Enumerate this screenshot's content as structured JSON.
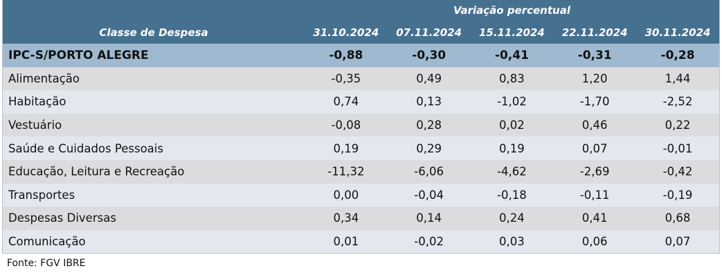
{
  "header": {
    "group_label": "Variação percentual",
    "class_label": "Classe de Despesa",
    "dates": [
      "31.10.2024",
      "07.11.2024",
      "15.11.2024",
      "22.11.2024",
      "30.11.2024"
    ]
  },
  "total": {
    "label": "IPC-S/PORTO ALEGRE",
    "values": [
      "-0,88",
      "-0,30",
      "-0,41",
      "-0,31",
      "-0,28"
    ]
  },
  "rows": [
    {
      "label": "Alimentação",
      "values": [
        "-0,35",
        "0,49",
        "0,83",
        "1,20",
        "1,44"
      ]
    },
    {
      "label": "Habitação",
      "values": [
        "0,74",
        "0,13",
        "-1,02",
        "-1,70",
        "-2,52"
      ]
    },
    {
      "label": "Vestuário",
      "values": [
        "-0,08",
        "0,28",
        "0,02",
        "0,46",
        "0,22"
      ]
    },
    {
      "label": "Saúde e Cuidados Pessoais",
      "values": [
        "0,19",
        "0,29",
        "0,19",
        "0,07",
        "-0,01"
      ]
    },
    {
      "label": "Educação, Leitura e Recreação",
      "values": [
        "-11,32",
        "-6,06",
        "-4,62",
        "-2,69",
        "-0,42"
      ]
    },
    {
      "label": "Transportes",
      "values": [
        "0,00",
        "-0,04",
        "-0,18",
        "-0,11",
        "-0,19"
      ]
    },
    {
      "label": "Despesas Diversas",
      "values": [
        "0,34",
        "0,14",
        "0,24",
        "0,41",
        "0,68"
      ]
    },
    {
      "label": "Comunicação",
      "values": [
        "0,01",
        "-0,02",
        "0,03",
        "0,06",
        "0,07"
      ]
    }
  ],
  "source": "Fonte: FGV IBRE"
}
